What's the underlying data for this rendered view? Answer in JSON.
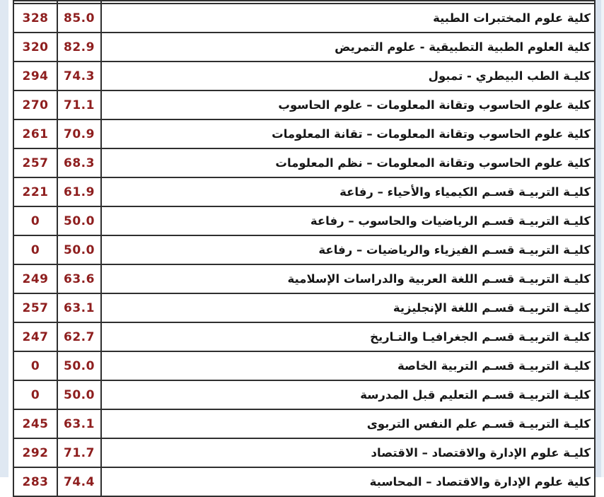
{
  "table": {
    "description_columns": [
      "college_name",
      "percent",
      "score"
    ],
    "rows": [
      {
        "score": "328",
        "percent": "85.0",
        "name": "كلية علوم المختبرات الطبية"
      },
      {
        "score": "320",
        "percent": "82.9",
        "name": "كلية العلوم الطبية التطبيقية - علوم التمريض"
      },
      {
        "score": "294",
        "percent": "74.3",
        "name": "كليـة الطب البيطري - تمبول"
      },
      {
        "score": "270",
        "percent": "71.1",
        "name": "كلية علوم الحاسوب وتقانة المعلومات –  علوم الحاسوب"
      },
      {
        "score": "261",
        "percent": "70.9",
        "name": "كلية علوم الحاسوب وتقانة المعلومات –  تقانة المعلومات"
      },
      {
        "score": "257",
        "percent": "68.3",
        "name": "كلية علوم الحاسوب وتقانة المعلومات –  نظم المعلومات"
      },
      {
        "score": "221",
        "percent": "61.9",
        "name": "كليـة التربيـة قسـم الكيمياء والأحياء –  رفاعة"
      },
      {
        "score": "0",
        "percent": "50.0",
        "name": "كليـة التربيـة قسـم الرياضيات والحاسوب –  رفاعة"
      },
      {
        "score": "0",
        "percent": "50.0",
        "name": "كليـة التربيـة قسـم الفيزياء والرياضيات –  رفاعة"
      },
      {
        "score": "249",
        "percent": "63.6",
        "name": "كليـة التربيـة قسـم اللغة العربية والدراسات الإسلامية"
      },
      {
        "score": "257",
        "percent": "63.1",
        "name": "كليـة التربيـة قسـم اللغة الإنجليزية"
      },
      {
        "score": "247",
        "percent": "62.7",
        "name": "كليـة التربيـة قسـم الجغرافيـا والتـاريخ"
      },
      {
        "score": "0",
        "percent": "50.0",
        "name": "كليـة التربيـة قسـم التربية الخاصة"
      },
      {
        "score": "0",
        "percent": "50.0",
        "name": "كليـة التربيـة قسـم التعليم قبل المدرسة"
      },
      {
        "score": "245",
        "percent": "63.1",
        "name": "كليـة التربيـة قسـم علم النفس التربوى"
      },
      {
        "score": "292",
        "percent": "71.7",
        "name": "كليـة علوم الإدارة والاقتصاد –  الاقتصاد"
      },
      {
        "score": "283",
        "percent": "74.4",
        "name": "كلية علوم الإدارة والاقتصاد –  المحاسبة"
      }
    ]
  },
  "colors": {
    "score_text": "#8e1e1e",
    "name_text": "#161616",
    "border": "#2f2f2f",
    "page_margin_strip": "#dfe8f2",
    "right_strip": "#d9e2ee",
    "cell_background": "#ffffff"
  }
}
